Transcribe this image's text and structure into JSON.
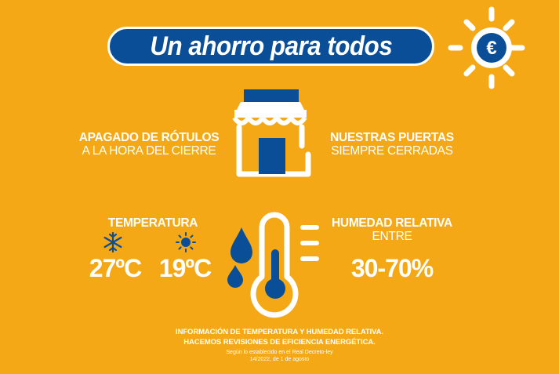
{
  "title": "Un ahorro para todos",
  "badge": {
    "symbol": "€"
  },
  "signs": {
    "line1": "APAGADO DE RÓTULOS",
    "line2": "A LA HORA DEL CIERRE"
  },
  "doors": {
    "line1": "NUESTRAS PUERTAS",
    "line2": "SIEMPRE CERRADAS"
  },
  "temperature": {
    "label": "TEMPERATURA",
    "summer": "27ºC",
    "winter": "19ºC"
  },
  "humidity": {
    "line1": "HUMEDAD RELATIVA",
    "line2": "ENTRE",
    "value": "30-70%"
  },
  "footer": {
    "line1": "INFORMACIÓN DE TEMPERATURA Y HUMEDAD RELATIVA.",
    "line2": "HACEMOS REVISIONES DE EFICIENCIA ENERGÉTICA.",
    "line3": "Según lo establecido en el Real Decreto-ley",
    "line4": "14/2022, de 1 de agosto"
  },
  "colors": {
    "background": "#F5A815",
    "navy": "#0A4E97",
    "white": "#FFFFFF"
  },
  "icons": [
    "sun-euro-icon",
    "shop-icon",
    "snowflake-icon",
    "sun-small-icon",
    "water-drops-icon",
    "thermometer-icon"
  ]
}
